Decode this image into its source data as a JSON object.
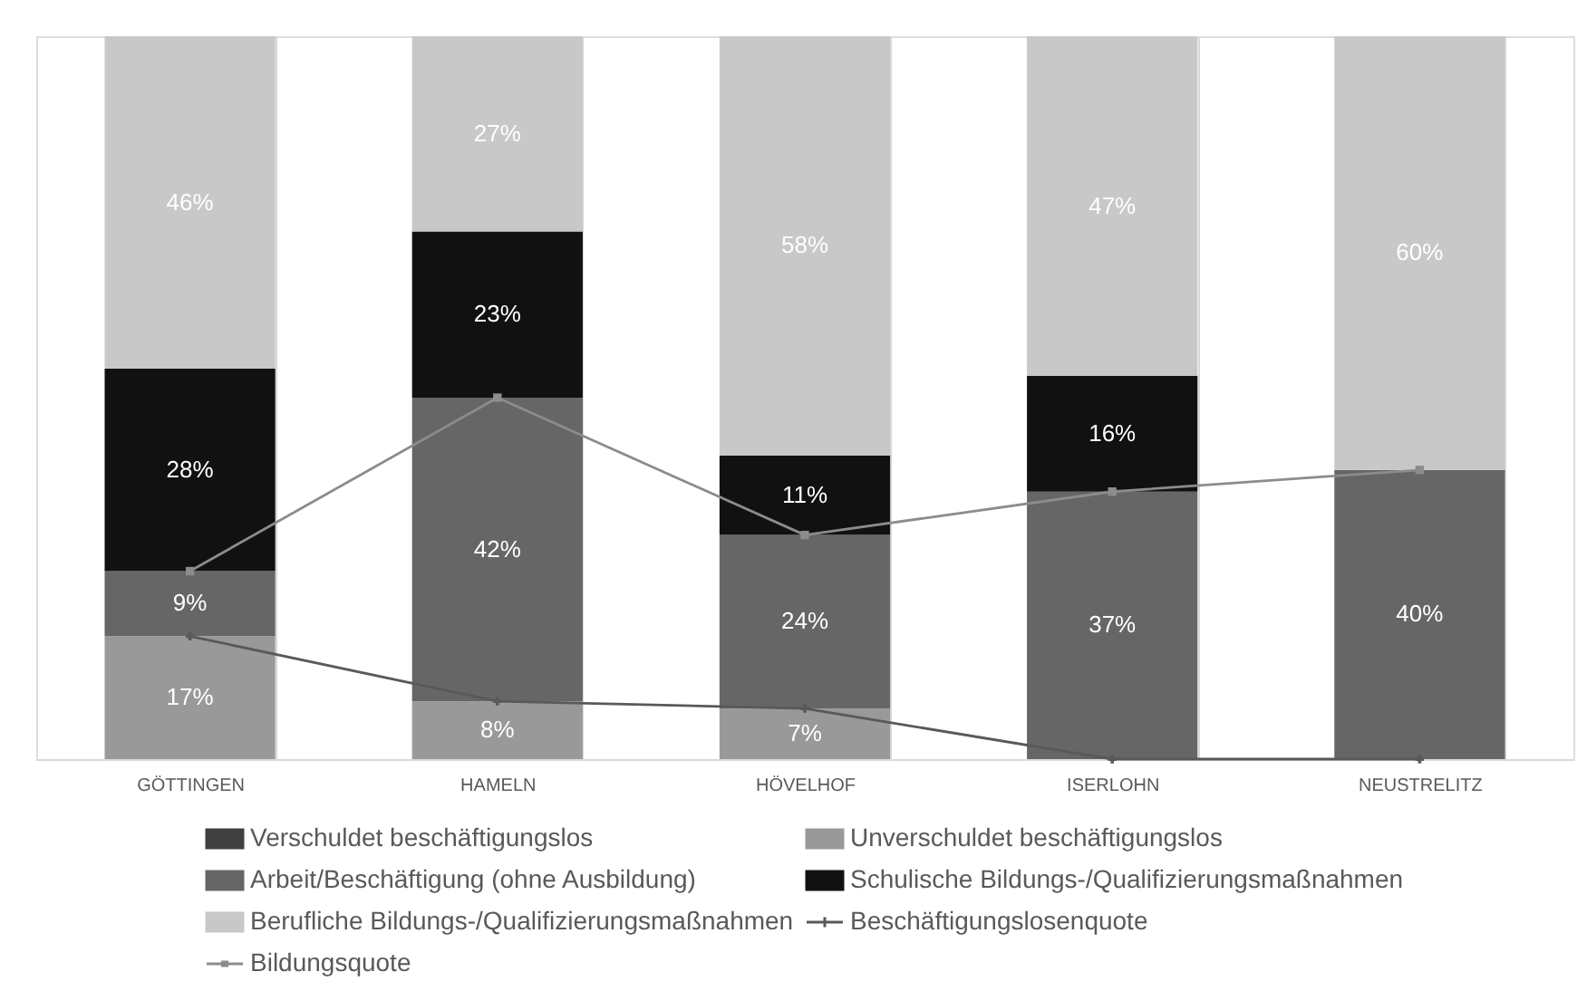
{
  "chart_data": {
    "type": "bar",
    "stacked": true,
    "categories": [
      "GÖTTINGEN",
      "HAMELN",
      "HÖVELHOF",
      "ISERLOHN",
      "NEUSTRELITZ"
    ],
    "ylim": [
      0,
      100
    ],
    "tick_labels": "x",
    "grid": "x",
    "legend": "bottom",
    "series": [
      {
        "name": "Verschuldet beschäftigungslos",
        "color": "#404040",
        "values": [
          null,
          null,
          null,
          null,
          null
        ]
      },
      {
        "name": "Unverschuldet beschäftigungslos",
        "color": "#999999",
        "values": [
          17,
          8,
          7,
          null,
          null
        ],
        "value_labels": [
          "17%",
          "8%",
          "7%",
          null,
          null
        ]
      },
      {
        "name": "Arbeit/Beschäftigung (ohne Ausbildung)",
        "color": "#666666",
        "values": [
          9,
          42,
          24,
          37,
          40
        ],
        "value_labels": [
          "9%",
          "42%",
          "24%",
          "37%",
          "40%"
        ]
      },
      {
        "name": "Schulische Bildungs-/Qualifizierungsmaßnahmen",
        "color": "#111111",
        "values": [
          28,
          23,
          11,
          16,
          null
        ],
        "value_labels": [
          "28%",
          "23%",
          "11%",
          "16%",
          null
        ]
      },
      {
        "name": "Berufliche Bildungs-/Qualifizierungsmaßnahmen",
        "color": "#c8c8c8",
        "values": [
          46,
          27,
          58,
          47,
          60
        ],
        "value_labels": [
          "46%",
          "27%",
          "58%",
          "47%",
          "60%"
        ]
      },
      {
        "name": "Beschäftigungslosenquote",
        "type": "line",
        "color": "#595959",
        "marker": "cross",
        "values": [
          17,
          8,
          7,
          0,
          0
        ]
      },
      {
        "name": "Bildungsquote",
        "type": "line",
        "color": "#8c8c8c",
        "marker": "square",
        "values": [
          26,
          50,
          31,
          37,
          40
        ]
      }
    ]
  }
}
